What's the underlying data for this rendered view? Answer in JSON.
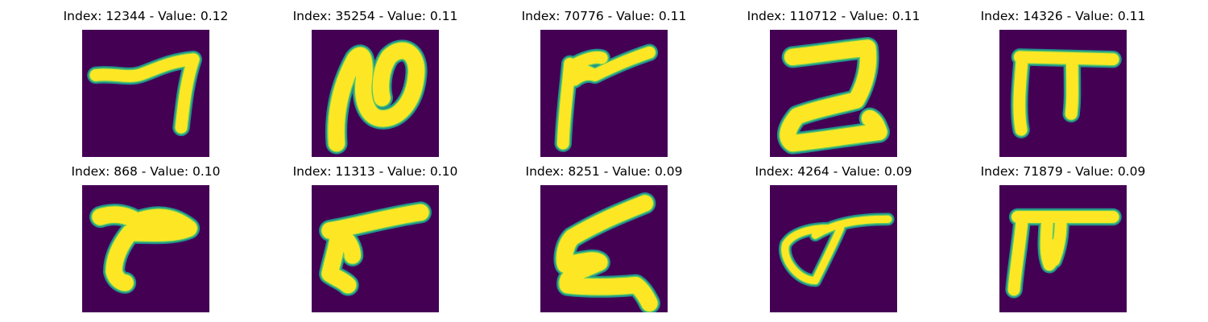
{
  "colors": {
    "background": "#440154",
    "stroke_edge": "#21918c",
    "stroke_mid": "#5ec962",
    "stroke_core": "#fde725"
  },
  "panels": [
    {
      "index": "12344",
      "value": "0.12",
      "title": "Index: 12344 - Value: 0.12"
    },
    {
      "index": "35254",
      "value": "0.11",
      "title": "Index: 35254 - Value: 0.11"
    },
    {
      "index": "70776",
      "value": "0.11",
      "title": "Index: 70776 - Value: 0.11"
    },
    {
      "index": "110712",
      "value": "0.11",
      "title": "Index: 110712 - Value: 0.11"
    },
    {
      "index": "14326",
      "value": "0.11",
      "title": "Index: 14326 - Value: 0.11"
    },
    {
      "index": "868",
      "value": "0.10",
      "title": "Index: 868 - Value: 0.10"
    },
    {
      "index": "11313",
      "value": "0.10",
      "title": "Index: 11313 - Value: 0.10"
    },
    {
      "index": "8251",
      "value": "0.09",
      "title": "Index: 8251 - Value: 0.09"
    },
    {
      "index": "4264",
      "value": "0.09",
      "title": "Index: 4264 - Value: 0.09"
    },
    {
      "index": "71879",
      "value": "0.09",
      "title": "Index: 71879 - Value: 0.09"
    }
  ]
}
